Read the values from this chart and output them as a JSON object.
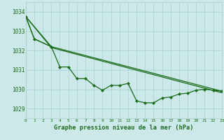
{
  "bg_color": "#cde8e8",
  "grid_color": "#aad4d4",
  "line_color": "#1a6b1a",
  "title": "Graphe pression niveau de la mer (hPa)",
  "xlim": [
    0,
    23
  ],
  "ylim": [
    1028.5,
    1034.5
  ],
  "yticks": [
    1029,
    1030,
    1031,
    1032,
    1033,
    1034
  ],
  "xticks": [
    0,
    1,
    2,
    3,
    4,
    5,
    6,
    7,
    8,
    9,
    10,
    11,
    12,
    13,
    14,
    15,
    16,
    17,
    18,
    19,
    20,
    21,
    22,
    23
  ],
  "line1_x": [
    0,
    1,
    3,
    4,
    5,
    6,
    7,
    8,
    9,
    10,
    11,
    12,
    13,
    14,
    15,
    16,
    17,
    18,
    19,
    20,
    21,
    22,
    23
  ],
  "line1_y": [
    1033.75,
    1032.6,
    1032.2,
    1031.15,
    1031.15,
    1030.55,
    1030.55,
    1030.2,
    1029.95,
    1030.2,
    1030.2,
    1030.3,
    1029.4,
    1029.3,
    1029.3,
    1029.55,
    1029.6,
    1029.75,
    1029.8,
    1029.95,
    1030.0,
    1029.95,
    1029.9
  ],
  "line2_x": [
    0,
    3,
    23
  ],
  "line2_y": [
    1033.75,
    1032.2,
    1029.9
  ],
  "line3_x": [
    0,
    3,
    23
  ],
  "line3_y": [
    1033.75,
    1032.15,
    1029.82
  ],
  "line4_x": [
    0,
    1,
    3
  ],
  "line4_y": [
    1033.75,
    1032.6,
    1032.2
  ]
}
